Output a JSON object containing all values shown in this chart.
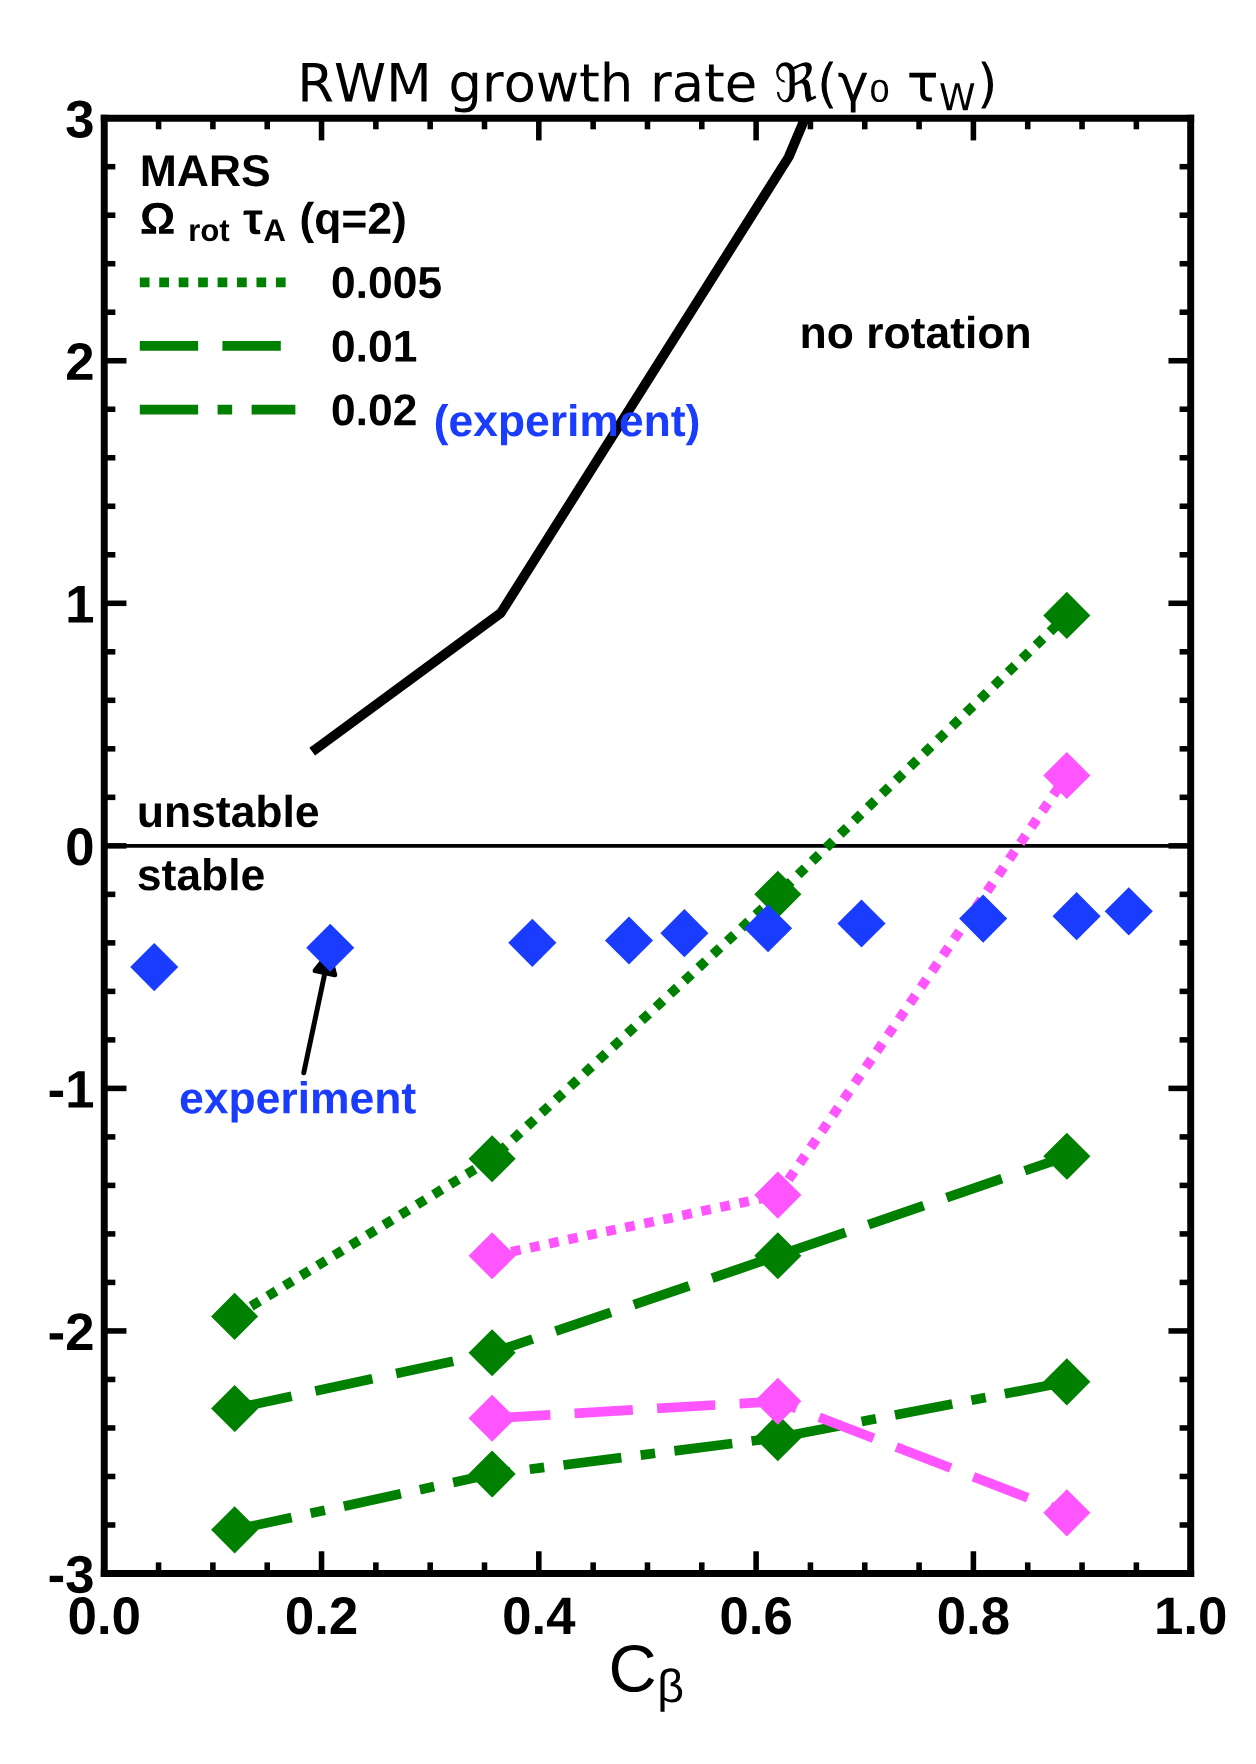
{
  "chart_data": {
    "type": "line",
    "title": "RWM growth rate ℜ(γ₀ τ$_{W}$)",
    "xlabel": "C$_{β}$",
    "xlim": [
      0,
      1
    ],
    "ylim": [
      -3,
      3
    ],
    "xticks": [
      {
        "value": 0,
        "label": "0.0"
      },
      {
        "value": 0.2,
        "label": "0.2"
      },
      {
        "value": 0.4,
        "label": "0.4"
      },
      {
        "value": 0.6,
        "label": "0.6"
      },
      {
        "value": 0.8,
        "label": "0.8"
      },
      {
        "value": 1,
        "label": "1.0"
      }
    ],
    "yticks": [
      -3,
      -2,
      -1,
      0,
      1,
      2,
      3
    ],
    "grid": false,
    "legend": "top left",
    "legend_title": "MARS\nΩ $_{rot}$ τ$_{A}$ (q=2)",
    "series": [
      {
        "name": "0.005",
        "color": "#008000",
        "line_style": "dotted",
        "marker": "diamond",
        "x": [
          0.12,
          0.357,
          0.62,
          0.886
        ],
        "values": [
          -1.94,
          -1.29,
          -0.2,
          0.95
        ]
      },
      {
        "name": "0.01",
        "color": "#008000",
        "line_style": "dashed",
        "marker": "diamond",
        "x": [
          0.12,
          0.357,
          0.62,
          0.886
        ],
        "values": [
          -2.32,
          -2.09,
          -1.69,
          -1.28
        ]
      },
      {
        "name": "0.02",
        "color": "#008000",
        "line_style": "dashdot",
        "marker": "diamond",
        "x": [
          0.12,
          0.357,
          0.62,
          0.886
        ],
        "values": [
          -2.82,
          -2.59,
          -2.44,
          -2.21
        ]
      },
      {
        "color": "#ff55ff",
        "line_style": "dotted",
        "marker": "diamond",
        "x": [
          0.357,
          0.62,
          0.886
        ],
        "values": [
          -1.69,
          -1.44,
          0.29
        ]
      },
      {
        "color": "#ff55ff",
        "line_style": "dashed",
        "marker": "diamond",
        "x": [
          0.357,
          0.62,
          0.886
        ],
        "values": [
          -2.36,
          -2.29,
          -2.75
        ]
      },
      {
        "color": "#000000",
        "line_style": "solid",
        "marker": "none",
        "x": [
          0.195,
          0.365,
          0.63,
          0.645
        ],
        "values": [
          0.4,
          0.96,
          2.84,
          3.0
        ]
      },
      {
        "type": "scatter",
        "color": "#1a3cff",
        "marker": "diamond",
        "x": [
          0.046,
          0.208,
          0.394,
          0.483,
          0.534,
          0.611,
          0.697,
          0.809,
          0.895,
          0.943
        ],
        "values": [
          -0.5,
          -0.42,
          -0.4,
          -0.39,
          -0.36,
          -0.34,
          -0.32,
          -0.3,
          -0.29,
          -0.27
        ]
      }
    ],
    "ref_lines": [
      {
        "axis": "y",
        "value": 0,
        "color": "#000000",
        "line_style": "solid"
      }
    ],
    "annotations": [
      "no rotation",
      "unstable",
      "stable",
      "(experiment)",
      {
        "text": "experiment",
        "x": 0.208,
        "y": -0.42
      }
    ]
  }
}
